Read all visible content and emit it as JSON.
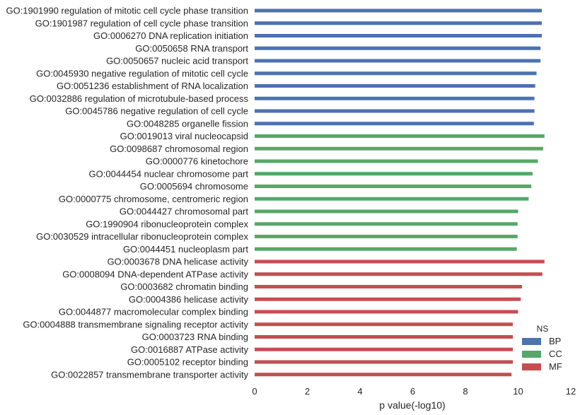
{
  "chart_data": {
    "type": "bar",
    "orientation": "horizontal",
    "categories": [
      "GO:1901990 regulation of mitotic cell cycle phase transition",
      "GO:1901987 regulation of cell cycle phase transition",
      "GO:0006270 DNA replication initiation",
      "GO:0050658 RNA transport",
      "GO:0050657 nucleic acid transport",
      "GO:0045930 negative regulation of mitotic cell cycle",
      "GO:0051236 establishment of RNA localization",
      "GO:0032886 regulation of microtubule-based process",
      "GO:0045786 negative regulation of cell cycle",
      "GO:0048285 organelle fission",
      "GO:0019013 viral nucleocapsid",
      "GO:0098687 chromosomal region",
      "GO:0000776 kinetochore",
      "GO:0044454 nuclear chromosome part",
      "GO:0005694 chromosome",
      "GO:0000775 chromosome, centromeric region",
      "GO:0044427 chromosomal part",
      "GO:1990904 ribonucleoprotein complex",
      "GO:0030529 intracellular ribonucleoprotein complex",
      "GO:0044451 nucleoplasm part",
      "GO:0003678 DNA helicase activity",
      "GO:0008094 DNA-dependent ATPase activity",
      "GO:0003682 chromatin binding",
      "GO:0004386 helicase activity",
      "GO:0044877 macromolecular complex binding",
      "GO:0004888 transmembrane signaling receptor activity",
      "GO:0003723 RNA binding",
      "GO:0016887 ATPase activity",
      "GO:0005102 receptor binding",
      "GO:0022857 transmembrane transporter activity"
    ],
    "values": [
      10.9,
      10.9,
      10.9,
      10.85,
      10.85,
      10.7,
      10.65,
      10.62,
      10.62,
      10.6,
      11.0,
      10.95,
      10.75,
      10.55,
      10.5,
      10.4,
      10.0,
      9.98,
      9.98,
      9.95,
      11.0,
      10.92,
      10.15,
      10.1,
      10.0,
      9.8,
      9.8,
      9.8,
      9.8,
      9.75
    ],
    "groups": [
      "BP",
      "BP",
      "BP",
      "BP",
      "BP",
      "BP",
      "BP",
      "BP",
      "BP",
      "BP",
      "CC",
      "CC",
      "CC",
      "CC",
      "CC",
      "CC",
      "CC",
      "CC",
      "CC",
      "CC",
      "MF",
      "MF",
      "MF",
      "MF",
      "MF",
      "MF",
      "MF",
      "MF",
      "MF",
      "MF"
    ],
    "xlabel": "p value(-log10)",
    "ylabel": "",
    "xlim": [
      0,
      12
    ],
    "xticks": [
      0,
      2,
      4,
      6,
      8,
      10,
      12
    ],
    "grid": false,
    "legend": {
      "title": "NS",
      "placement": "bottom-right",
      "entries": [
        {
          "name": "BP",
          "color": "#4c72b0"
        },
        {
          "name": "CC",
          "color": "#55a868"
        },
        {
          "name": "MF",
          "color": "#c44e52"
        }
      ]
    }
  }
}
